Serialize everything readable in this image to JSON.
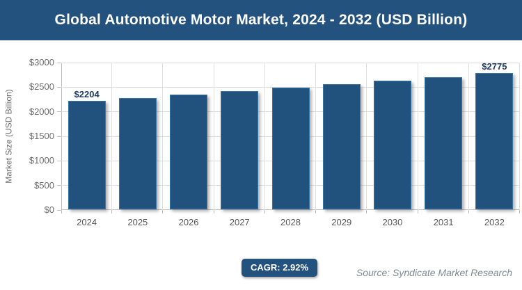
{
  "header": {
    "title": "Global Automotive Motor Market, 2024 - 2032 (USD Billion)"
  },
  "chart_data": {
    "type": "bar",
    "title": "Global Automotive Motor Market, 2024 - 2032 (USD Billion)",
    "categories": [
      "2024",
      "2025",
      "2026",
      "2027",
      "2028",
      "2029",
      "2030",
      "2031",
      "2032"
    ],
    "values": [
      2204,
      2268,
      2334,
      2402,
      2472,
      2545,
      2619,
      2695,
      2775
    ],
    "point_labels": [
      "$2204",
      "",
      "",
      "",
      "",
      "",
      "",
      "",
      "$2775"
    ],
    "xlabel": "",
    "ylabel": "Market Size (USD Billion)",
    "ylim": [
      0,
      3000
    ],
    "ytick_step": 500,
    "ytick_labels": [
      "$0",
      "$500",
      "$1000",
      "$1500",
      "$2000",
      "$2500",
      "$3000"
    ],
    "grid": true,
    "legend": "none",
    "bar_color": "#21527E",
    "bar_border_color": "#3a76a4",
    "label_color": "#1e3a5f",
    "axis_text_color": "#6d6d6d"
  },
  "footer": {
    "cagr_label": "CAGR: 2.92%",
    "source": "Source: Syndicate Market Research"
  },
  "colors": {
    "header_bg": "#24527E",
    "header_text": "#ffffff",
    "gridline": "#dcdcdc",
    "axis_line": "#bfbfbf"
  }
}
